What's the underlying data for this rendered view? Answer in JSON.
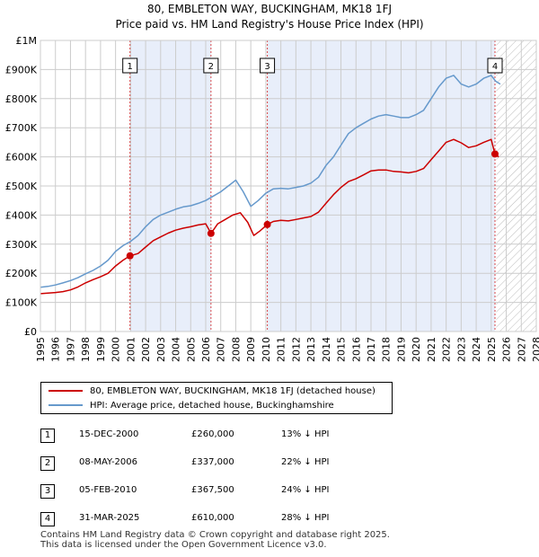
{
  "chart_data": {
    "type": "line",
    "title": "80, EMBLETON WAY, BUCKINGHAM, MK18 1FJ",
    "subtitle": "Price paid vs. HM Land Registry's House Price Index (HPI)",
    "xlabel": "",
    "ylabel": "",
    "xlim": [
      1995,
      2028
    ],
    "ylim": [
      0,
      1000000
    ],
    "x_ticks": [
      1995,
      1996,
      1997,
      1998,
      1999,
      2000,
      2001,
      2002,
      2003,
      2004,
      2005,
      2006,
      2007,
      2008,
      2009,
      2010,
      2011,
      2012,
      2013,
      2014,
      2015,
      2016,
      2017,
      2018,
      2019,
      2020,
      2021,
      2022,
      2023,
      2024,
      2025,
      2026,
      2027,
      2028
    ],
    "y_ticks": [
      {
        "value": 0,
        "label": "£0"
      },
      {
        "value": 100000,
        "label": "£100K"
      },
      {
        "value": 200000,
        "label": "£200K"
      },
      {
        "value": 300000,
        "label": "£300K"
      },
      {
        "value": 400000,
        "label": "£400K"
      },
      {
        "value": 500000,
        "label": "£500K"
      },
      {
        "value": 600000,
        "label": "£600K"
      },
      {
        "value": 700000,
        "label": "£700K"
      },
      {
        "value": 800000,
        "label": "£800K"
      },
      {
        "value": 900000,
        "label": "£900K"
      },
      {
        "value": 1000000,
        "label": "£1M"
      }
    ],
    "grid": true,
    "projection_start": 2025.33,
    "series": [
      {
        "name": "80, EMBLETON WAY, BUCKINGHAM, MK18 1FJ (detached house)",
        "color": "#cc0000",
        "x": [
          1995.0,
          1995.5,
          1996.0,
          1996.5,
          1997.0,
          1997.5,
          1998.0,
          1998.5,
          1999.0,
          1999.5,
          2000.0,
          2000.5,
          2000.96,
          2001.5,
          2002.0,
          2002.5,
          2003.0,
          2003.5,
          2004.0,
          2004.5,
          2005.0,
          2005.5,
          2006.0,
          2006.35,
          2006.8,
          2007.3,
          2007.8,
          2008.3,
          2008.8,
          2009.2,
          2009.6,
          2010.1,
          2010.5,
          2011.0,
          2011.5,
          2012.0,
          2012.5,
          2013.0,
          2013.5,
          2014.0,
          2014.5,
          2015.0,
          2015.5,
          2016.0,
          2016.5,
          2017.0,
          2017.5,
          2018.0,
          2018.5,
          2019.0,
          2019.5,
          2020.0,
          2020.5,
          2021.0,
          2021.5,
          2022.0,
          2022.5,
          2023.0,
          2023.5,
          2024.0,
          2024.5,
          2025.0,
          2025.25,
          2025.5
        ],
        "values": [
          130000,
          132000,
          134000,
          137000,
          143000,
          153000,
          167000,
          178000,
          188000,
          200000,
          225000,
          245000,
          260000,
          268000,
          290000,
          312000,
          325000,
          338000,
          348000,
          355000,
          360000,
          366000,
          370000,
          337000,
          370000,
          385000,
          400000,
          408000,
          375000,
          330000,
          345000,
          367500,
          378000,
          382000,
          380000,
          385000,
          390000,
          395000,
          410000,
          440000,
          470000,
          495000,
          515000,
          525000,
          538000,
          552000,
          555000,
          555000,
          550000,
          548000,
          545000,
          550000,
          560000,
          590000,
          620000,
          650000,
          660000,
          648000,
          632000,
          638000,
          650000,
          660000,
          610000,
          600000
        ]
      },
      {
        "name": "HPI: Average price, detached house, Buckinghamshire",
        "color": "#6699cc",
        "x": [
          1995.0,
          1995.5,
          1996.0,
          1996.5,
          1997.0,
          1997.5,
          1998.0,
          1998.5,
          1999.0,
          1999.5,
          2000.0,
          2000.5,
          2001.0,
          2001.5,
          2002.0,
          2002.5,
          2003.0,
          2003.5,
          2004.0,
          2004.5,
          2005.0,
          2005.5,
          2006.0,
          2006.5,
          2007.0,
          2007.5,
          2008.0,
          2008.5,
          2009.0,
          2009.5,
          2010.0,
          2010.5,
          2011.0,
          2011.5,
          2012.0,
          2012.5,
          2013.0,
          2013.5,
          2014.0,
          2014.5,
          2015.0,
          2015.5,
          2016.0,
          2016.5,
          2017.0,
          2017.5,
          2018.0,
          2018.5,
          2019.0,
          2019.5,
          2020.0,
          2020.5,
          2021.0,
          2021.5,
          2022.0,
          2022.5,
          2023.0,
          2023.5,
          2024.0,
          2024.5,
          2025.0,
          2025.3,
          2025.6
        ],
        "values": [
          152000,
          155000,
          160000,
          167000,
          175000,
          185000,
          198000,
          210000,
          225000,
          245000,
          275000,
          295000,
          310000,
          330000,
          360000,
          385000,
          400000,
          410000,
          420000,
          428000,
          432000,
          440000,
          450000,
          465000,
          480000,
          500000,
          520000,
          480000,
          430000,
          450000,
          475000,
          490000,
          492000,
          490000,
          495000,
          500000,
          510000,
          530000,
          570000,
          600000,
          640000,
          680000,
          700000,
          715000,
          730000,
          740000,
          745000,
          740000,
          735000,
          735000,
          745000,
          760000,
          800000,
          840000,
          870000,
          880000,
          850000,
          840000,
          850000,
          870000,
          880000,
          860000,
          850000
        ]
      }
    ],
    "sales": [
      {
        "label": "1",
        "x": 2000.96,
        "value": 260000
      },
      {
        "label": "2",
        "x": 2006.35,
        "value": 337000
      },
      {
        "label": "3",
        "x": 2010.1,
        "value": 367500
      },
      {
        "label": "4",
        "x": 2025.25,
        "value": 610000
      }
    ]
  },
  "legend": {
    "items": [
      {
        "label": "80, EMBLETON WAY, BUCKINGHAM, MK18 1FJ (detached house)",
        "color": "#cc0000"
      },
      {
        "label": "HPI: Average price, detached house, Buckinghamshire",
        "color": "#6699cc"
      }
    ]
  },
  "sales_table": [
    {
      "num": "1",
      "date": "15-DEC-2000",
      "price": "£260,000",
      "hpi": "13% ↓ HPI"
    },
    {
      "num": "2",
      "date": "08-MAY-2006",
      "price": "£337,000",
      "hpi": "22% ↓ HPI"
    },
    {
      "num": "3",
      "date": "05-FEB-2010",
      "price": "£367,500",
      "hpi": "24% ↓ HPI"
    },
    {
      "num": "4",
      "date": "31-MAR-2025",
      "price": "£610,000",
      "hpi": "28% ↓ HPI"
    }
  ],
  "footer": {
    "line1": "Contains HM Land Registry data © Crown copyright and database right 2025.",
    "line2": "This data is licensed under the Open Government Licence v3.0."
  }
}
